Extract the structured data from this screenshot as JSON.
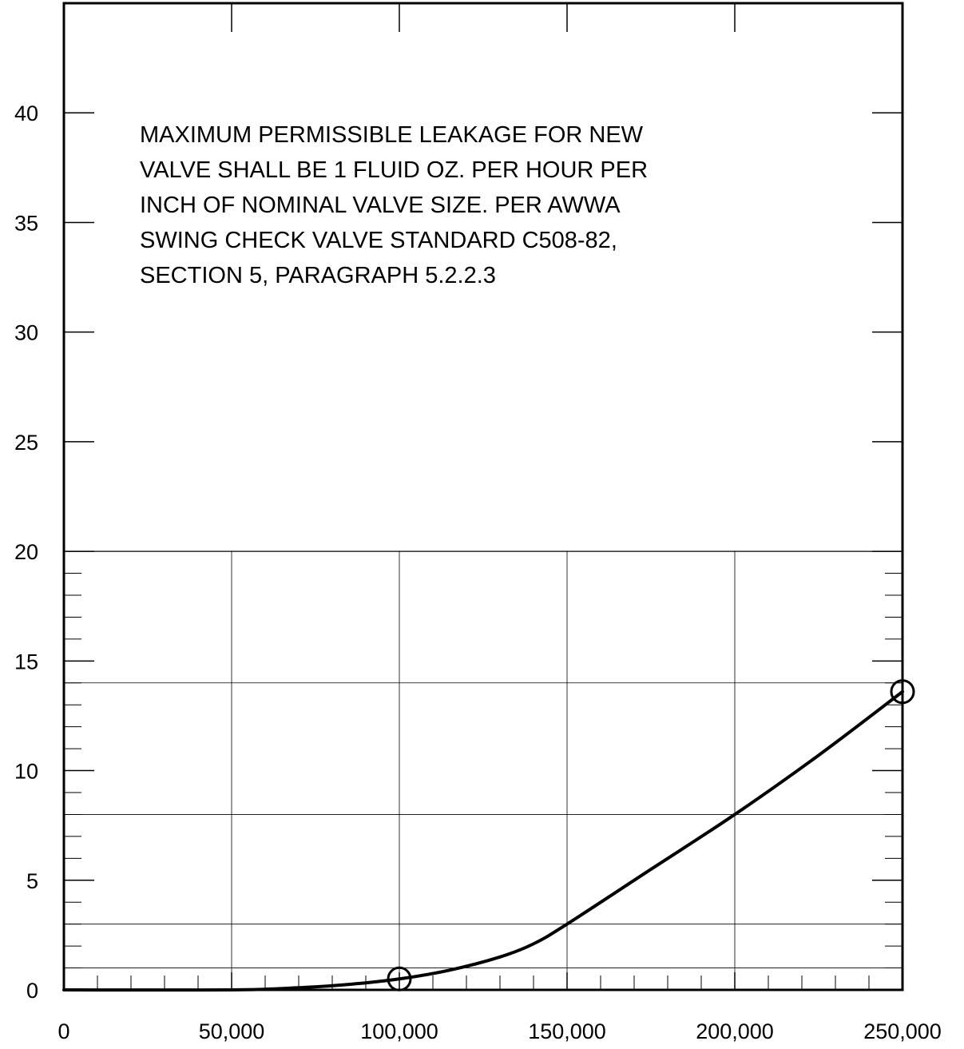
{
  "chart_data": {
    "type": "line",
    "title": "",
    "xlabel": "",
    "ylabel": "",
    "xlim": [
      0,
      250000
    ],
    "ylim": [
      0,
      45
    ],
    "x_ticks": [
      "0",
      "50,000",
      "100,000",
      "150,000",
      "200,000",
      "250,000"
    ],
    "y_ticks": [
      "0",
      "5",
      "10",
      "15",
      "20",
      "25",
      "30",
      "35",
      "40"
    ],
    "grid": "lower region (0-20) only",
    "annotation": [
      "MAXIMUM PERMISSIBLE LEAKAGE FOR NEW",
      "VALVE SHALL BE 1 FLUID OZ. PER HOUR PER",
      "INCH OF NOMINAL VALVE SIZE.  PER AWWA",
      "SWING CHECK VALVE STANDARD C508-82,",
      "SECTION 5, PARAGRAPH 5.2.2.3"
    ],
    "series": [
      {
        "x": [
          0,
          50000,
          70000,
          85000,
          100000,
          115000,
          130000,
          140000,
          150000,
          175000,
          200000,
          225000,
          250000
        ],
        "y": [
          0,
          0,
          0.1,
          0.25,
          0.5,
          0.9,
          1.5,
          2.1,
          3.0,
          5.5,
          8.0,
          10.7,
          13.6
        ]
      }
    ],
    "markers": [
      {
        "x": 100000,
        "y": 0.5
      },
      {
        "x": 250000,
        "y": 13.6
      }
    ]
  }
}
